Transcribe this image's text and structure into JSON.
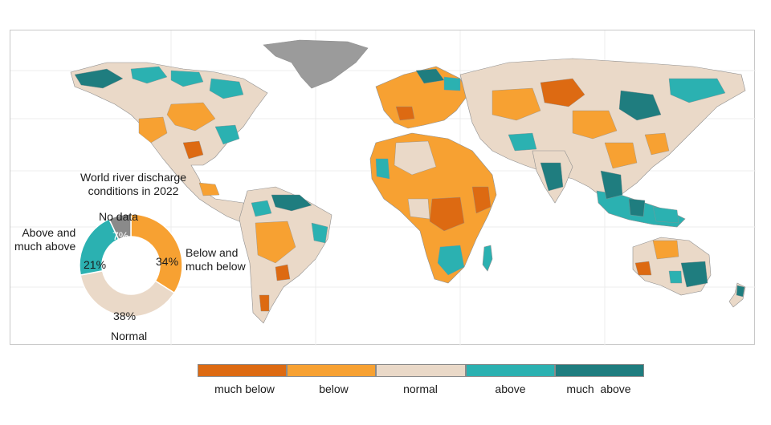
{
  "colors": {
    "much_below": "#dd6a12",
    "below": "#f7a132",
    "normal": "#ead9c8",
    "above": "#2bb1b1",
    "much_above": "#1f7d7f",
    "no_data": "#9b9b9b"
  },
  "donut": {
    "title_line1": "World river discharge",
    "title_line2": "conditions in 2022",
    "segments": [
      {
        "label_line1": "Below and",
        "label_line2": "much below",
        "value": 34,
        "pct_label": "34%",
        "color": "#f7a132"
      },
      {
        "label_line1": "Normal",
        "label_line2": "",
        "value": 38,
        "pct_label": "38%",
        "color": "#ead9c8"
      },
      {
        "label_line1": "Above and",
        "label_line2": "much above",
        "value": 21,
        "pct_label": "21%",
        "color": "#2bb1b1"
      },
      {
        "label_line1": "No data",
        "label_line2": "",
        "value": 7,
        "pct_label": "7%",
        "color": "#8a8a8a"
      }
    ]
  },
  "legend": {
    "items": [
      {
        "label": "much below",
        "color": "#dd6a12"
      },
      {
        "label": "below",
        "color": "#f7a132"
      },
      {
        "label": "normal",
        "color": "#ead9c8"
      },
      {
        "label": "above",
        "color": "#2bb1b1"
      },
      {
        "label": "much  above",
        "color": "#1f7d7f"
      }
    ]
  }
}
